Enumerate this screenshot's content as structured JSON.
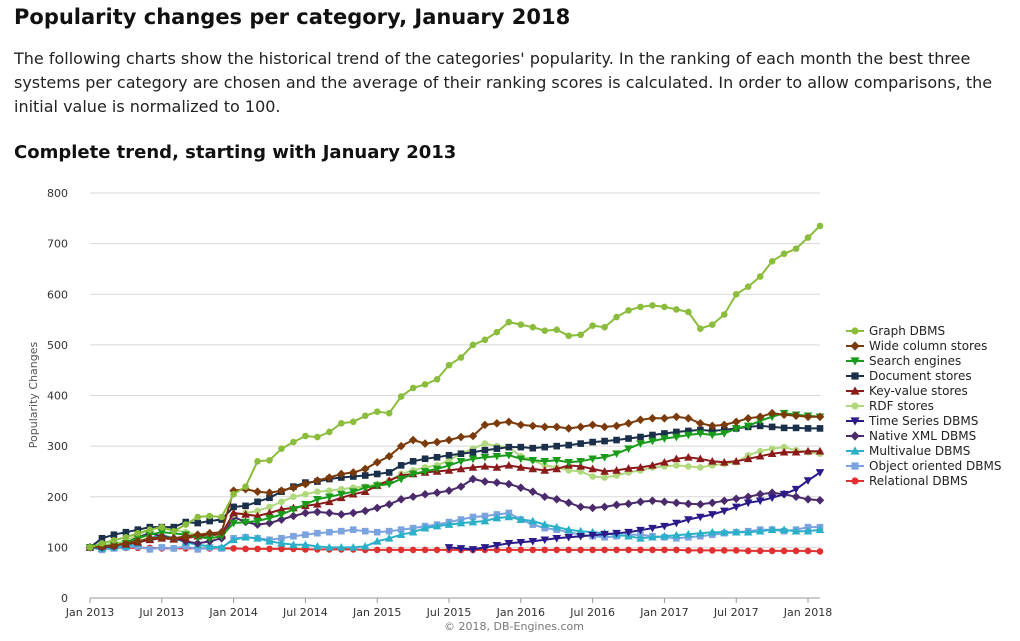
{
  "page": {
    "title": "Popularity changes per category, January 2018",
    "intro": "The following charts show the historical trend of the categories' popularity. In the ranking of each month the best three systems per category are chosen and the average of their ranking scores is calculated. In order to allow comparisons, the initial value is normalized to 100.",
    "subtitle": "Complete trend, starting with January 2013",
    "credit": "© 2018, DB-Engines.com"
  },
  "chart_data": {
    "type": "line",
    "ylabel": "Popularity Changes",
    "xlabel": "",
    "ylim": [
      0,
      800
    ],
    "yticks": [
      0,
      100,
      200,
      300,
      400,
      500,
      600,
      700,
      800
    ],
    "xticks": [
      "Jan 2013",
      "Jul 2013",
      "Jan 2014",
      "Jul 2014",
      "Jan 2015",
      "Jul 2015",
      "Jan 2016",
      "Jul 2016",
      "Jan 2017",
      "Jul 2017",
      "Jan 2018"
    ],
    "x_start": "Jan 2013",
    "x_end": "Jan 2018",
    "grid": "horizontal",
    "legend_position": "right",
    "series": [
      {
        "name": "Graph DBMS",
        "color": "#8bbd3c",
        "marker": "circle",
        "values": [
          100,
          108,
          114,
          120,
          128,
          135,
          140,
          132,
          145,
          160,
          162,
          160,
          205,
          220,
          270,
          272,
          295,
          308,
          320,
          318,
          328,
          345,
          348,
          360,
          368,
          365,
          398,
          415,
          422,
          432,
          460,
          475,
          500,
          510,
          525,
          545,
          540,
          535,
          528,
          530,
          518,
          520,
          538,
          535,
          555,
          568,
          575,
          578,
          575,
          570,
          565,
          532,
          540,
          560,
          600,
          615,
          635,
          665,
          680,
          690,
          712,
          735
        ]
      },
      {
        "name": "Wide column stores",
        "color": "#7a3a0a",
        "marker": "diamond",
        "values": [
          100,
          102,
          104,
          108,
          112,
          118,
          120,
          118,
          122,
          125,
          128,
          130,
          212,
          215,
          210,
          208,
          212,
          218,
          225,
          232,
          238,
          245,
          248,
          255,
          268,
          280,
          300,
          312,
          305,
          308,
          312,
          318,
          320,
          342,
          345,
          348,
          342,
          340,
          338,
          338,
          335,
          338,
          342,
          338,
          340,
          345,
          352,
          355,
          355,
          358,
          355,
          345,
          340,
          342,
          348,
          355,
          358,
          365,
          362,
          360,
          358,
          358
        ]
      },
      {
        "name": "Search engines",
        "color": "#1a9c1a",
        "marker": "triangle-down",
        "values": [
          100,
          102,
          104,
          108,
          118,
          125,
          130,
          128,
          125,
          120,
          118,
          122,
          148,
          150,
          152,
          158,
          165,
          175,
          185,
          195,
          200,
          205,
          210,
          218,
          222,
          225,
          235,
          245,
          250,
          255,
          262,
          270,
          275,
          278,
          280,
          282,
          275,
          272,
          270,
          272,
          268,
          270,
          275,
          278,
          285,
          295,
          305,
          310,
          315,
          318,
          322,
          325,
          322,
          325,
          335,
          340,
          350,
          358,
          365,
          362,
          360,
          358
        ]
      },
      {
        "name": "Document stores",
        "color": "#1a2f4a",
        "marker": "square",
        "values": [
          100,
          118,
          125,
          130,
          135,
          140,
          140,
          140,
          150,
          148,
          152,
          155,
          180,
          182,
          190,
          198,
          210,
          220,
          228,
          230,
          235,
          238,
          240,
          242,
          245,
          248,
          262,
          270,
          275,
          278,
          282,
          285,
          288,
          292,
          295,
          298,
          298,
          296,
          298,
          300,
          302,
          305,
          308,
          310,
          312,
          315,
          318,
          322,
          325,
          328,
          330,
          332,
          330,
          332,
          335,
          338,
          340,
          338,
          336,
          336,
          335,
          335
        ]
      },
      {
        "name": "Key-value stores",
        "color": "#8b1a1a",
        "marker": "triangle-up",
        "values": [
          100,
          102,
          104,
          106,
          110,
          115,
          118,
          116,
          118,
          122,
          124,
          126,
          168,
          165,
          162,
          168,
          175,
          178,
          182,
          185,
          190,
          198,
          205,
          210,
          222,
          232,
          242,
          245,
          248,
          250,
          252,
          255,
          258,
          260,
          258,
          262,
          258,
          255,
          252,
          255,
          262,
          260,
          255,
          250,
          252,
          256,
          258,
          262,
          268,
          275,
          278,
          275,
          270,
          268,
          270,
          275,
          280,
          285,
          288,
          288,
          290,
          290
        ]
      },
      {
        "name": "RDF stores",
        "color": "#b0d87c",
        "marker": "circle",
        "values": [
          100,
          104,
          108,
          112,
          125,
          135,
          140,
          135,
          130,
          125,
          122,
          128,
          165,
          168,
          172,
          180,
          190,
          200,
          205,
          210,
          212,
          215,
          218,
          220,
          225,
          232,
          245,
          252,
          258,
          262,
          272,
          285,
          295,
          305,
          300,
          298,
          280,
          272,
          262,
          258,
          252,
          250,
          240,
          238,
          242,
          248,
          252,
          258,
          260,
          262,
          260,
          258,
          262,
          265,
          268,
          282,
          290,
          295,
          298,
          292,
          288,
          285
        ]
      },
      {
        "name": "Time Series DBMS",
        "color": "#2a1a8a",
        "marker": "triangle-down",
        "values": [
          null,
          null,
          null,
          null,
          null,
          null,
          null,
          null,
          null,
          null,
          null,
          null,
          null,
          null,
          null,
          null,
          null,
          null,
          null,
          null,
          null,
          null,
          null,
          null,
          null,
          null,
          null,
          null,
          null,
          null,
          100,
          98,
          96,
          100,
          104,
          108,
          110,
          112,
          115,
          118,
          120,
          122,
          124,
          126,
          128,
          130,
          134,
          138,
          142,
          148,
          155,
          160,
          165,
          172,
          180,
          188,
          192,
          198,
          205,
          215,
          232,
          248
        ]
      },
      {
        "name": "Native XML DBMS",
        "color": "#4a2a6a",
        "marker": "diamond",
        "values": [
          100,
          100,
          102,
          110,
          120,
          128,
          122,
          118,
          112,
          108,
          112,
          118,
          160,
          150,
          145,
          148,
          155,
          162,
          168,
          170,
          168,
          165,
          168,
          172,
          178,
          185,
          195,
          200,
          205,
          208,
          212,
          220,
          235,
          230,
          228,
          225,
          218,
          210,
          200,
          195,
          188,
          180,
          178,
          180,
          184,
          186,
          190,
          192,
          190,
          188,
          186,
          185,
          188,
          192,
          196,
          200,
          205,
          208,
          205,
          200,
          195,
          193
        ]
      },
      {
        "name": "Multivalue DBMS",
        "color": "#2ab0c8",
        "marker": "triangle-up",
        "values": [
          100,
          98,
          100,
          102,
          108,
          118,
          125,
          118,
          110,
          105,
          102,
          100,
          115,
          120,
          118,
          112,
          108,
          105,
          105,
          102,
          100,
          100,
          100,
          102,
          112,
          118,
          125,
          130,
          138,
          142,
          145,
          148,
          150,
          152,
          158,
          160,
          155,
          152,
          145,
          140,
          135,
          132,
          130,
          128,
          125,
          122,
          118,
          120,
          122,
          124,
          126,
          128,
          130,
          130,
          130,
          130,
          132,
          135,
          135,
          132,
          132,
          135
        ]
      },
      {
        "name": "Object oriented DBMS",
        "color": "#7aa3e0",
        "marker": "square",
        "values": [
          100,
          95,
          98,
          100,
          102,
          96,
          100,
          98,
          102,
          96,
          100,
          98,
          118,
          120,
          118,
          115,
          118,
          122,
          125,
          128,
          130,
          132,
          135,
          132,
          130,
          132,
          135,
          138,
          142,
          145,
          150,
          155,
          160,
          162,
          165,
          168,
          155,
          145,
          138,
          135,
          130,
          125,
          122,
          120,
          122,
          125,
          125,
          122,
          120,
          118,
          120,
          122,
          125,
          128,
          130,
          132,
          135,
          135,
          132,
          135,
          140,
          140
        ]
      },
      {
        "name": "Relational DBMS",
        "color": "#e03030",
        "marker": "circle",
        "values": [
          100,
          100,
          99,
          99,
          99,
          99,
          98,
          98,
          98,
          98,
          98,
          98,
          98,
          97,
          97,
          97,
          97,
          97,
          96,
          96,
          96,
          96,
          96,
          95,
          95,
          95,
          95,
          95,
          95,
          95,
          95,
          95,
          95,
          95,
          95,
          95,
          95,
          95,
          95,
          95,
          95,
          95,
          95,
          95,
          95,
          95,
          95,
          95,
          95,
          95,
          94,
          94,
          94,
          94,
          94,
          93,
          93,
          93,
          93,
          93,
          93,
          92
        ]
      }
    ]
  }
}
